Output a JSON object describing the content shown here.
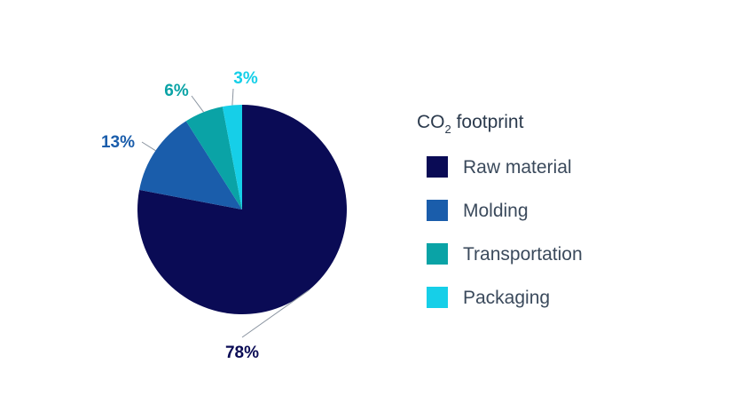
{
  "chart_data": {
    "type": "pie",
    "legend_title": {
      "main": "CO",
      "subscript": "2",
      "suffix": " footprint"
    },
    "legend_position": "right",
    "slices": [
      {
        "name": "Raw material",
        "value": 78,
        "label": "78%",
        "color": "#0a0b55",
        "label_color": "#0a0b55"
      },
      {
        "name": "Molding",
        "value": 13,
        "label": "13%",
        "color": "#1a5dab",
        "label_color": "#1a5dab"
      },
      {
        "name": "Transportation",
        "value": 6,
        "label": "6%",
        "color": "#0aa3a6",
        "label_color": "#0aa3a6"
      },
      {
        "name": "Packaging",
        "value": 3,
        "label": "3%",
        "color": "#16cfe8",
        "label_color": "#16cfe8"
      }
    ]
  }
}
